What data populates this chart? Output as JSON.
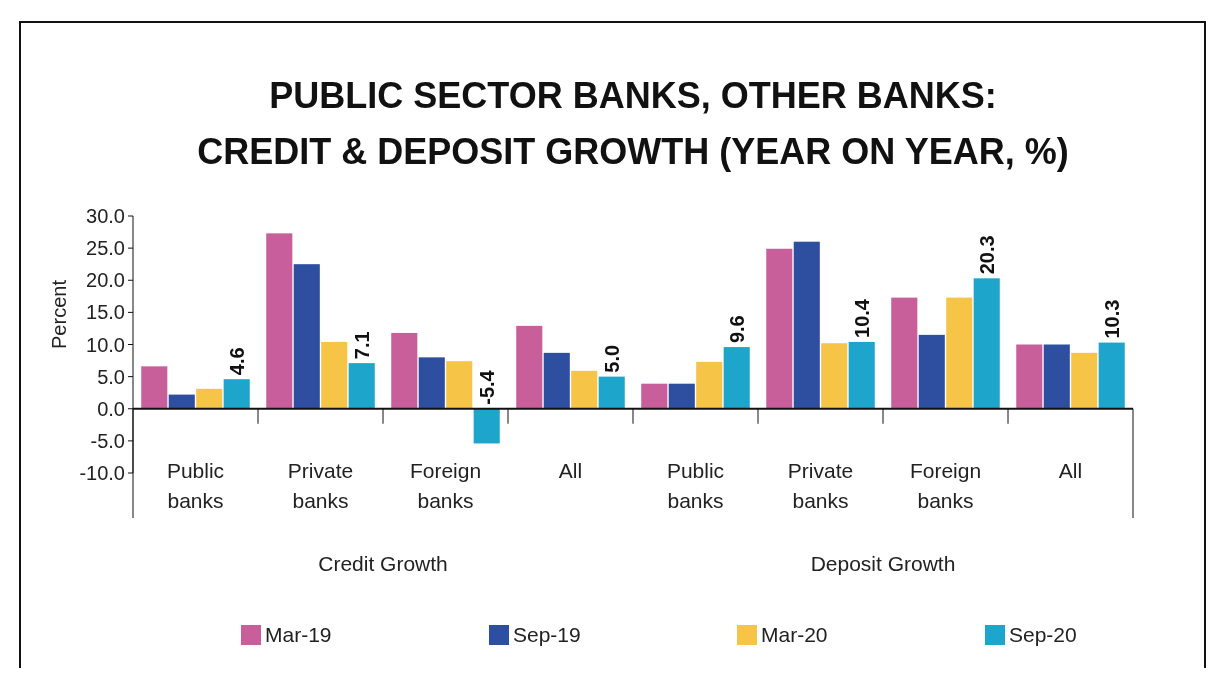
{
  "chart_data": {
    "type": "bar",
    "title": "PUBLIC SECTOR BANKS, OTHER BANKS:\nCREDIT & DEPOSIT GROWTH (YEAR ON YEAR, %)",
    "ylabel": "Percent",
    "categories": [
      "Public banks",
      "Private banks",
      "Foreign banks",
      "All",
      "Public banks",
      "Private banks",
      "Foreign banks",
      "All"
    ],
    "series": [
      {
        "name": "Mar-19",
        "color": "#c85f9a",
        "values": [
          6.6,
          27.3,
          11.8,
          12.9,
          3.9,
          24.9,
          17.3,
          10.0
        ]
      },
      {
        "name": "Sep-19",
        "color": "#2e4fa0",
        "values": [
          2.2,
          22.5,
          8.0,
          8.7,
          3.9,
          26.0,
          11.5,
          10.0
        ]
      },
      {
        "name": "Mar-20",
        "color": "#f6c447",
        "values": [
          3.1,
          10.4,
          7.4,
          5.9,
          7.3,
          10.2,
          17.3,
          8.7
        ]
      },
      {
        "name": "Sep-20",
        "color": "#1ea5cb",
        "values": [
          4.6,
          7.1,
          -5.4,
          5.0,
          9.6,
          10.4,
          20.3,
          10.3
        ],
        "value_labels": [
          "4.6",
          "7.1",
          "-5.4",
          "5.0",
          "9.6",
          "10.4",
          "20.3",
          "10.3"
        ]
      }
    ],
    "annotations": [
      "Credit Growth",
      "Deposit Growth"
    ],
    "ylim": [
      -10,
      30
    ],
    "yticks": [
      {
        "value": -10,
        "label": "-10.0"
      },
      {
        "value": -5,
        "label": "-5.0"
      },
      {
        "value": 0,
        "label": "0.0"
      },
      {
        "value": 5,
        "label": "5.0"
      },
      {
        "value": 10,
        "label": "10.0"
      },
      {
        "value": 15,
        "label": "15.0"
      },
      {
        "value": 20,
        "label": "20.0"
      },
      {
        "value": 25,
        "label": "25.0"
      },
      {
        "value": 30,
        "label": "30.0"
      }
    ],
    "grid": false,
    "legend": "bottom"
  }
}
